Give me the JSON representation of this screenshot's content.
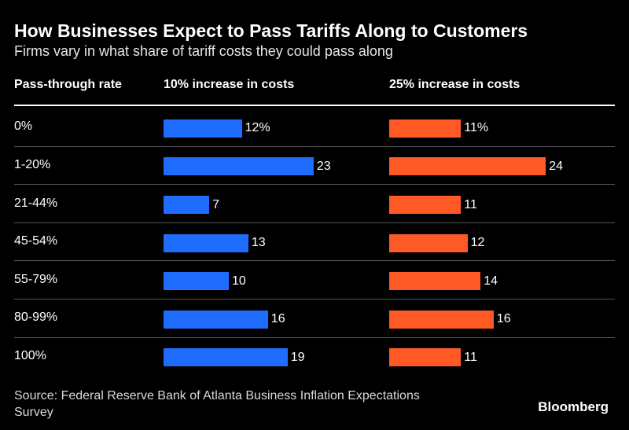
{
  "chart_data": {
    "type": "bar",
    "title": "How Businesses Expect to Pass Tariffs Along to Customers",
    "subtitle": "Firms vary in what share of tariff costs they could pass along",
    "category_header": "Pass-through rate",
    "categories": [
      "0%",
      "1-20%",
      "21-44%",
      "45-54%",
      "55-79%",
      "80-99%",
      "100%"
    ],
    "series": [
      {
        "name": "10% increase in costs",
        "values": [
          12,
          23,
          7,
          13,
          10,
          16,
          19
        ],
        "labels": [
          "12%",
          "23",
          "7",
          "13",
          "10",
          "16",
          "19"
        ],
        "color": "#1f6cff"
      },
      {
        "name": "25% increase in costs",
        "values": [
          11,
          24,
          11,
          12,
          14,
          16,
          11
        ],
        "labels": [
          "11%",
          "24",
          "11",
          "12",
          "14",
          "16",
          "11"
        ],
        "color": "#ff5a26"
      }
    ],
    "source": "Source: Federal Reserve Bank of Atlanta Business Inflation Expectations Survey",
    "brand": "Bloomberg"
  }
}
